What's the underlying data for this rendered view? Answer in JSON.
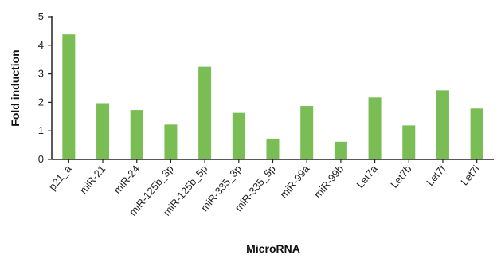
{
  "chart_data": {
    "type": "bar",
    "title": "",
    "xlabel": "MicroRNA",
    "ylabel": "Fold induction",
    "ylim": [
      0,
      5
    ],
    "yticks": [
      "0",
      "1",
      "2",
      "3",
      "4",
      "5"
    ],
    "categories": [
      "p21_a",
      "miR-21",
      "miR-24",
      "miR-125b_3p",
      "miR-125b_5p",
      "miR-335_3p",
      "miR-335_5p",
      "miR-99a",
      "miR-99b",
      "Let7a",
      "Let7b",
      "Let7f",
      "Let7i"
    ],
    "values": [
      4.38,
      1.97,
      1.73,
      1.22,
      3.25,
      1.63,
      0.73,
      1.87,
      0.62,
      2.17,
      1.19,
      2.42,
      1.78
    ],
    "bar_color": "#7bbd55",
    "axis_color": "#222222",
    "grid": false,
    "legend": "none"
  }
}
